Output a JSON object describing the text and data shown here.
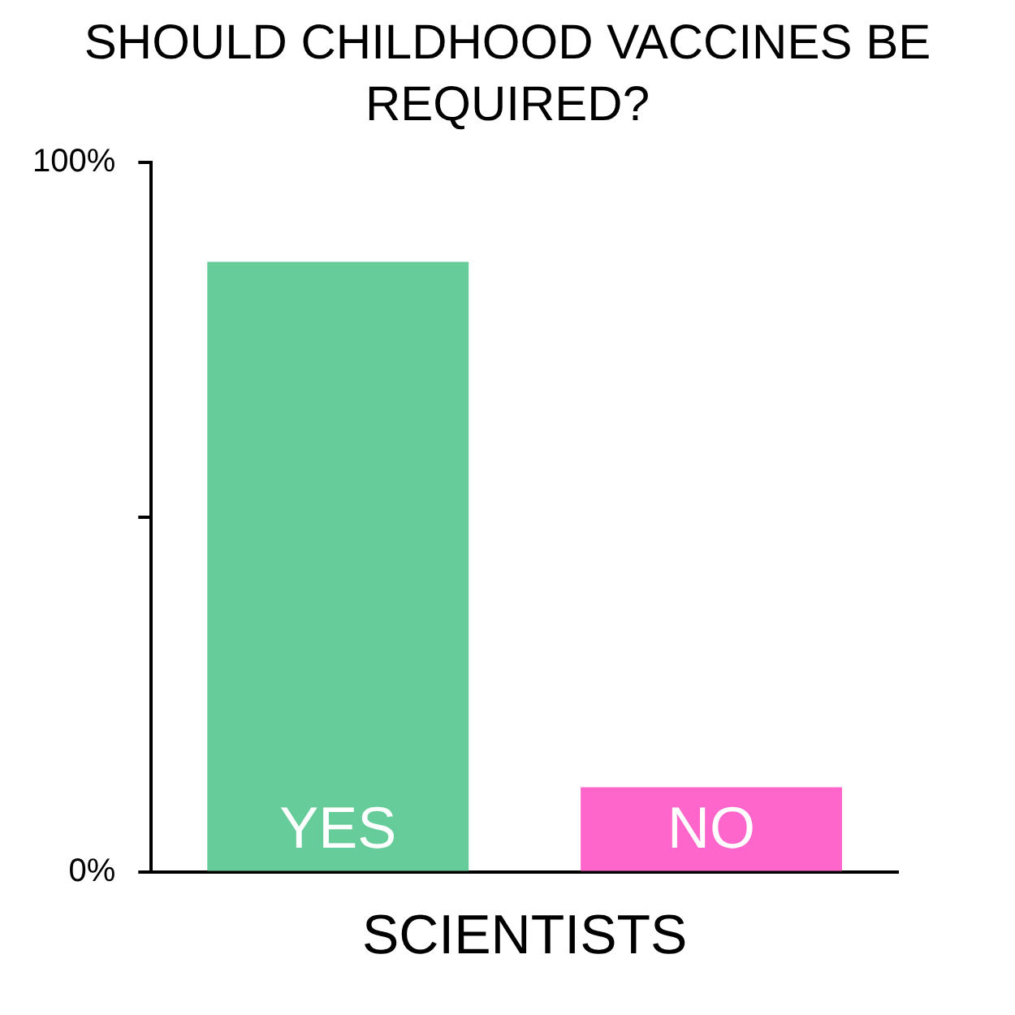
{
  "chart_data": {
    "type": "bar",
    "title": "SHOULD CHILDHOOD VACCINES BE REQUIRED?",
    "xlabel": "SCIENTISTS",
    "categories": [
      "YES",
      "NO"
    ],
    "values": [
      86,
      12
    ],
    "colors": [
      "#66cc99",
      "#ff66cc"
    ],
    "ylim": [
      0,
      100
    ],
    "yticks": [
      {
        "value": 0,
        "label": "0%"
      },
      {
        "value": 50,
        "label": null
      },
      {
        "value": 100,
        "label": "100%"
      }
    ],
    "grid": false,
    "legend": false
  }
}
